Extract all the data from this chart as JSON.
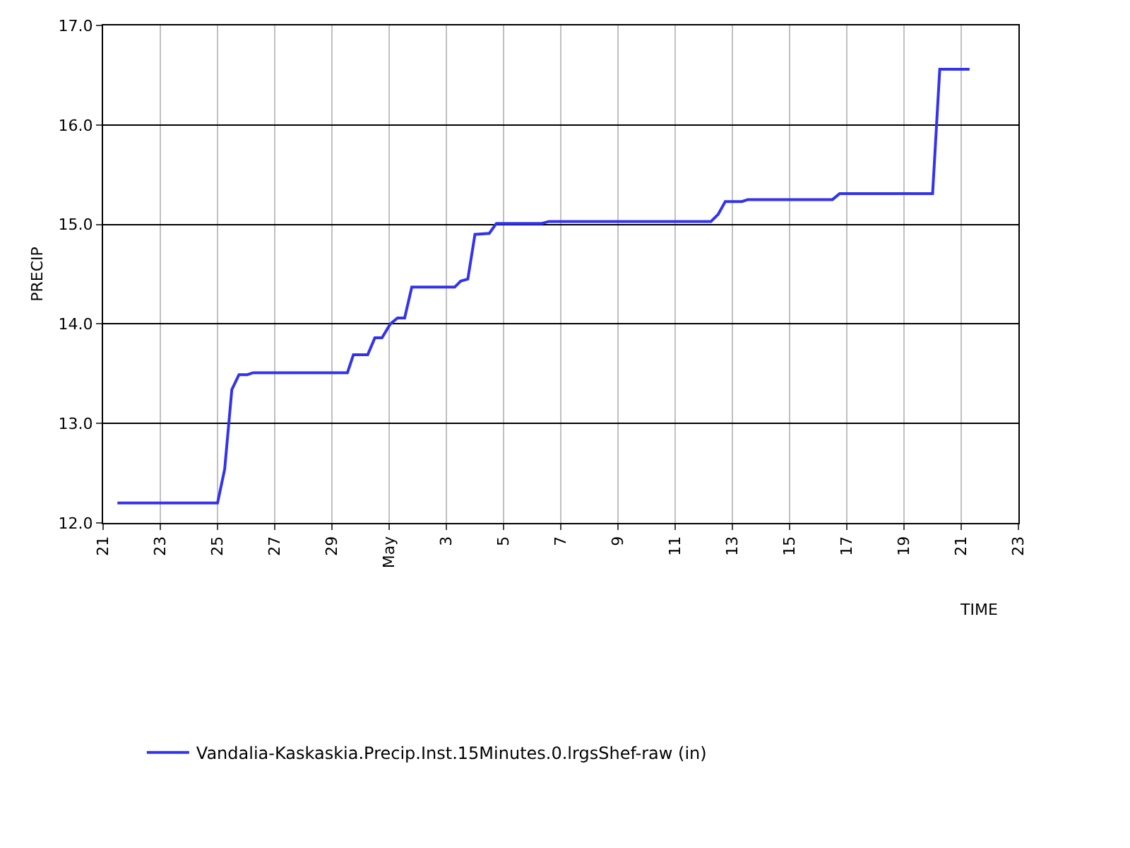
{
  "chart_data": {
    "type": "line",
    "xlabel": "TIME",
    "ylabel": "PRECIP",
    "x": [
      "--04-21T12:00",
      "--04-25T00:00",
      "--04-25T06:00",
      "--04-25T12:00",
      "--04-25T18:00",
      "--04-26T01:00",
      "--04-26T06:00",
      "--04-29T13:00",
      "--04-29T18:00",
      "--04-30T06:00",
      "--04-30T12:00",
      "--04-30T18:00",
      "--05-01T01:00",
      "--05-01T07:00",
      "--05-01T13:00",
      "--05-01T19:00",
      "--05-03T07:00",
      "--05-03T12:00",
      "--05-03T18:00",
      "--05-04T00:00",
      "--05-04T12:00",
      "--05-04T18:00",
      "--05-06T08:00",
      "--05-06T14:00",
      "--05-12T06:00",
      "--05-12T12:00",
      "--05-12T18:00",
      "--05-13T08:00",
      "--05-13T13:00",
      "--05-16T12:00",
      "--05-16T18:00",
      "--05-20T00:00",
      "--05-20T06:00",
      "--05-21T07:00"
    ],
    "series": [
      {
        "name": "Vandalia-Kaskaskia.Precip.Inst.15Minutes.0.lrgsShef-raw (in)",
        "color": "#3333ee",
        "values": [
          12.2,
          12.2,
          12.54,
          13.34,
          13.49,
          13.49,
          13.51,
          13.51,
          13.69,
          13.69,
          13.86,
          13.86,
          14.0,
          14.06,
          14.06,
          14.37,
          14.37,
          14.43,
          14.45,
          14.9,
          14.91,
          15.01,
          15.01,
          15.03,
          15.03,
          15.1,
          15.23,
          15.23,
          15.25,
          15.25,
          15.31,
          15.31,
          16.56,
          16.56
        ]
      }
    ],
    "xlim": [
      "--04-21",
      "--05-23"
    ],
    "xticks": [
      {
        "value": "--04-21",
        "label": "21"
      },
      {
        "value": "--04-23",
        "label": "23"
      },
      {
        "value": "--04-25",
        "label": "25"
      },
      {
        "value": "--04-27",
        "label": "27"
      },
      {
        "value": "--04-29",
        "label": "29"
      },
      {
        "value": "--05-01",
        "label": "May"
      },
      {
        "value": "--05-03",
        "label": "3"
      },
      {
        "value": "--05-05",
        "label": "5"
      },
      {
        "value": "--05-07",
        "label": "7"
      },
      {
        "value": "--05-09",
        "label": "9"
      },
      {
        "value": "--05-11",
        "label": "11"
      },
      {
        "value": "--05-13",
        "label": "13"
      },
      {
        "value": "--05-15",
        "label": "15"
      },
      {
        "value": "--05-17",
        "label": "17"
      },
      {
        "value": "--05-19",
        "label": "19"
      },
      {
        "value": "--05-21",
        "label": "21"
      },
      {
        "value": "--05-23",
        "label": "23"
      }
    ],
    "ylim": [
      12,
      17
    ],
    "yticks": [
      {
        "value": 12,
        "label": "12.0"
      },
      {
        "value": 13,
        "label": "13.0"
      },
      {
        "value": 14,
        "label": "14.0"
      },
      {
        "value": 15,
        "label": "15.0"
      },
      {
        "value": 16,
        "label": "16.0"
      },
      {
        "value": 17,
        "label": "17.0"
      }
    ],
    "grid": true,
    "legend": "bottom left",
    "marker": "none",
    "line_style": "solid"
  }
}
